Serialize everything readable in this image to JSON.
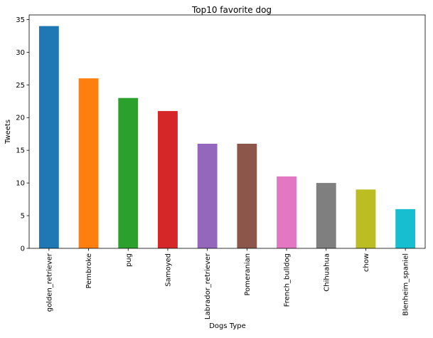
{
  "chart_data": {
    "type": "bar",
    "title": "Top10 favorite dog",
    "xlabel": "Dogs Type",
    "ylabel": "Tweets",
    "categories": [
      "golden_retriever",
      "Pembroke",
      "pug",
      "Samoyed",
      "Labrador_retriever",
      "Pomeranian",
      "French_bulldog",
      "Chihuahua",
      "chow",
      "Blenheim_spaniel"
    ],
    "values": [
      34,
      26,
      23,
      21,
      16,
      16,
      11,
      10,
      9,
      6
    ],
    "colors": [
      "#1f77b4",
      "#ff7f0e",
      "#2ca02c",
      "#d62728",
      "#9467bd",
      "#8c564b",
      "#e377c2",
      "#7f7f7f",
      "#bcbd22",
      "#17becf"
    ],
    "ylim": [
      0,
      35.7
    ],
    "yticks": [
      0,
      5,
      10,
      15,
      20,
      25,
      30,
      35
    ],
    "grid": false,
    "legend": "none"
  }
}
